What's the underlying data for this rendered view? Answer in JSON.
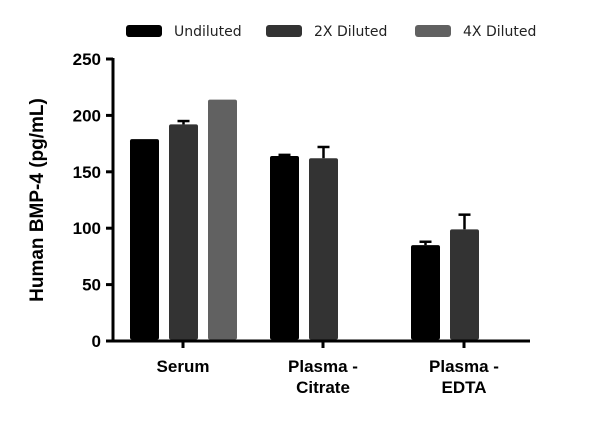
{
  "chart_data": {
    "type": "bar",
    "title": "",
    "xlabel": "",
    "ylabel": "Human BMP-4 (pg/mL)",
    "ylim": [
      0,
      250
    ],
    "yticks": [
      0,
      50,
      100,
      150,
      200,
      250
    ],
    "grid": false,
    "legend_position": "top",
    "categories": [
      [
        "Serum"
      ],
      [
        "Plasma -",
        "Citrate"
      ],
      [
        "Plasma -",
        "EDTA"
      ]
    ],
    "series": [
      {
        "name": "Undiluted",
        "color": "#000000",
        "values": [
          179,
          164,
          85
        ],
        "error": [
          0,
          1,
          3
        ]
      },
      {
        "name": "2X Diluted",
        "color": "#333333",
        "values": [
          192,
          162,
          99
        ],
        "error": [
          3,
          10,
          13
        ]
      },
      {
        "name": "4X Diluted",
        "color": "#616161",
        "values": [
          214,
          null,
          null
        ],
        "error": [
          0,
          null,
          null
        ]
      }
    ]
  }
}
